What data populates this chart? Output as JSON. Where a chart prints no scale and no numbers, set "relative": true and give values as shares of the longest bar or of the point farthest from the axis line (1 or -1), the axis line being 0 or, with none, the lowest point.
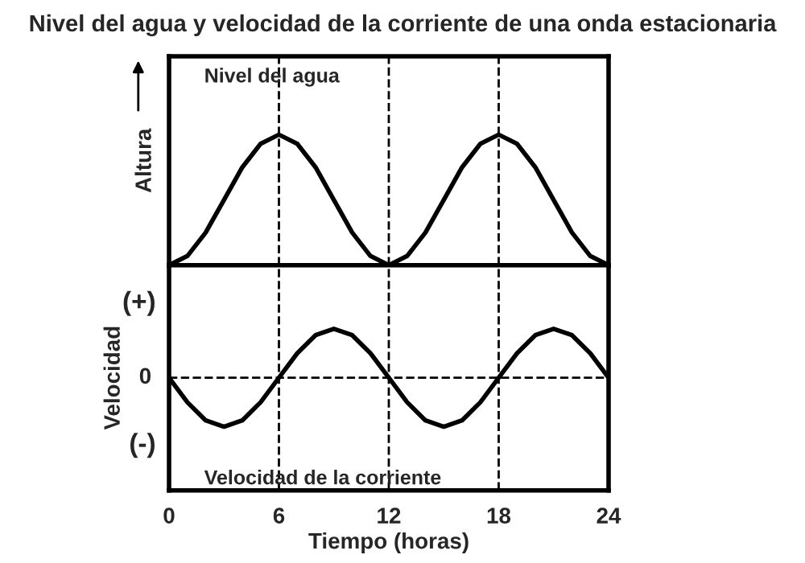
{
  "chart_data": [
    {
      "type": "line",
      "title": "Nivel del agua y velocidad de la corriente de una onda estacionaria",
      "ylabel": "Altura",
      "relative": true,
      "x": [
        0,
        1,
        2,
        3,
        4,
        5,
        6,
        7,
        8,
        9,
        10,
        11,
        12,
        13,
        14,
        15,
        16,
        17,
        18,
        19,
        20,
        21,
        22,
        23,
        24
      ],
      "xlim": [
        0,
        24
      ],
      "xticks": [
        0,
        6,
        12,
        18,
        24
      ],
      "tick_labels": false,
      "grid": false,
      "marker": "none",
      "line_style": "solid",
      "series": [
        {
          "color": "#000000",
          "values": [
            0,
            0.07,
            0.25,
            0.5,
            0.75,
            0.93,
            1,
            0.93,
            0.75,
            0.5,
            0.25,
            0.07,
            0,
            0.07,
            0.25,
            0.5,
            0.75,
            0.93,
            1,
            0.93,
            0.75,
            0.5,
            0.25,
            0.07,
            0
          ]
        }
      ],
      "ref_lines": [
        {
          "axis": "x",
          "value": 6,
          "line_style": "dashed"
        },
        {
          "axis": "x",
          "value": 12,
          "line_style": "dashed"
        },
        {
          "axis": "x",
          "value": 18,
          "line_style": "dashed"
        }
      ],
      "annotations": [
        "Nivel del agua"
      ]
    },
    {
      "type": "line",
      "xlabel": "Tiempo (horas)",
      "ylabel": "Velocidad",
      "relative": true,
      "x": [
        0,
        1,
        2,
        3,
        4,
        5,
        6,
        7,
        8,
        9,
        10,
        11,
        12,
        13,
        14,
        15,
        16,
        17,
        18,
        19,
        20,
        21,
        22,
        23,
        24
      ],
      "xlim": [
        0,
        24
      ],
      "xticks": [
        0,
        6,
        12,
        18,
        24
      ],
      "tick_labels": "x",
      "grid": false,
      "marker": "none",
      "line_style": "solid",
      "series": [
        {
          "color": "#000000",
          "values": [
            0,
            -0.5,
            -0.87,
            -1,
            -0.87,
            -0.5,
            0,
            0.5,
            0.87,
            1,
            0.87,
            0.5,
            0,
            -0.5,
            -0.87,
            -1,
            -0.87,
            -0.5,
            0,
            0.5,
            0.87,
            1,
            0.87,
            0.5,
            0
          ]
        }
      ],
      "ref_lines": [
        {
          "axis": "y",
          "value": 0,
          "label": "0",
          "line_style": "dashed"
        },
        {
          "axis": "x",
          "value": 6,
          "line_style": "dashed"
        },
        {
          "axis": "x",
          "value": 12,
          "line_style": "dashed"
        },
        {
          "axis": "x",
          "value": 18,
          "line_style": "dashed"
        }
      ],
      "annotations": [
        "(+)",
        "(-)",
        "Velocidad de la corriente"
      ]
    }
  ]
}
